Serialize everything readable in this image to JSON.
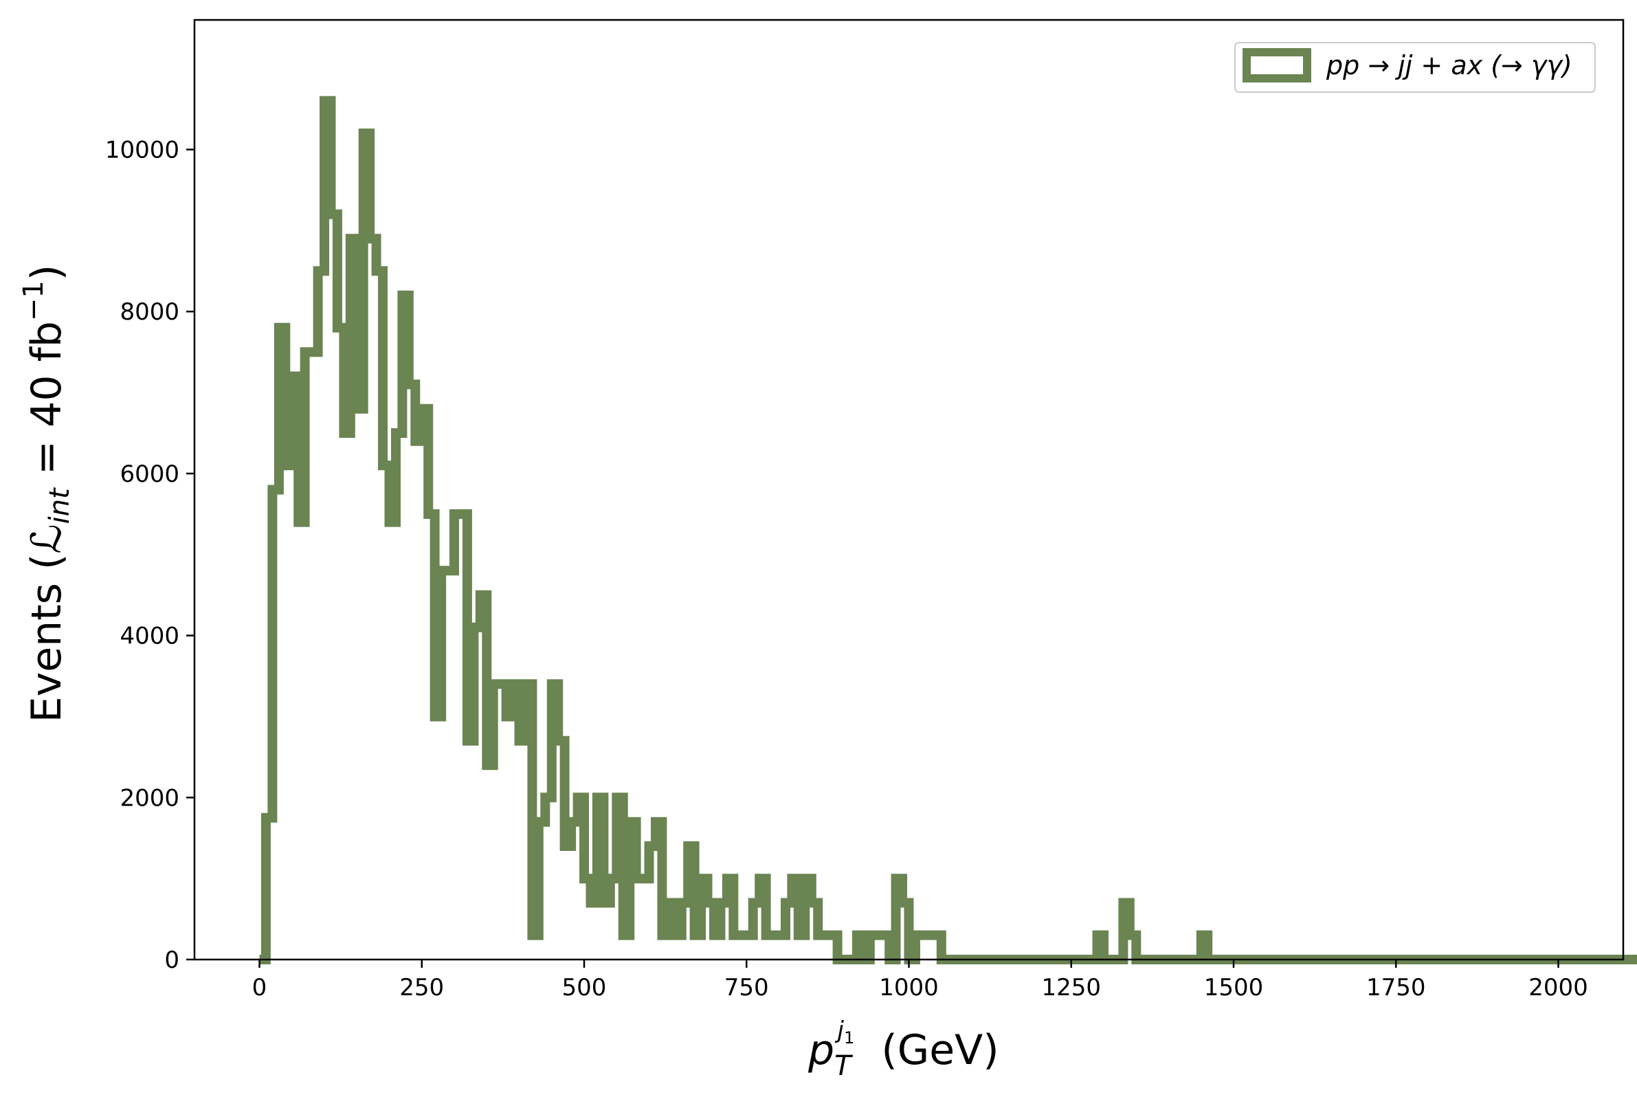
{
  "chart_data": {
    "type": "step",
    "title": "",
    "xlabel": "p_T^{j_1} (GeV)",
    "ylabel": "Events (ℒ_int = 40 fb⁻¹)",
    "xlim": [
      -100,
      2100
    ],
    "ylim": [
      0,
      11600
    ],
    "xticks": [
      0,
      250,
      500,
      750,
      1000,
      1250,
      1500,
      1750,
      2000
    ],
    "yticks": [
      0,
      2000,
      4000,
      6000,
      8000,
      10000
    ],
    "grid": false,
    "legend_position": "upper right",
    "color": "#6a8452",
    "series": [
      {
        "name": "pp → jj + ax (→ γγ)",
        "bin_width": 10,
        "bin_start": 0,
        "values": [
          0,
          1750,
          5800,
          7800,
          6100,
          7200,
          5400,
          7500,
          7500,
          8500,
          10600,
          9200,
          7800,
          6500,
          8900,
          6800,
          10200,
          8900,
          8500,
          6100,
          5400,
          6500,
          8200,
          7100,
          6400,
          6800,
          5500,
          3000,
          4800,
          4800,
          5500,
          5500,
          2700,
          4100,
          4500,
          2400,
          3400,
          3400,
          3000,
          3400,
          2700,
          3400,
          300,
          1700,
          2000,
          3400,
          2700,
          1400,
          1700,
          2000,
          1000,
          700,
          2000,
          700,
          1000,
          2000,
          300,
          1700,
          1000,
          1000,
          1400,
          1700,
          300,
          700,
          300,
          700,
          1400,
          300,
          1000,
          700,
          300,
          700,
          1000,
          300,
          300,
          300,
          700,
          1000,
          300,
          300,
          300,
          700,
          1000,
          300,
          1000,
          700,
          300,
          300,
          300,
          0,
          0,
          0,
          300,
          0,
          300,
          300,
          300,
          0,
          1000,
          700,
          0,
          300,
          300,
          300,
          300,
          0,
          0,
          0,
          0,
          0,
          0,
          0,
          0,
          0,
          0,
          0,
          0,
          0,
          0,
          0,
          0,
          0,
          0,
          0,
          0,
          0,
          0,
          0,
          0,
          300,
          0,
          0,
          0,
          700,
          300,
          0,
          0,
          0,
          0,
          0,
          0,
          0,
          0,
          0,
          0,
          300,
          0,
          0,
          0,
          0,
          0,
          0,
          0,
          0,
          0,
          0,
          0,
          0,
          0,
          0,
          0,
          0,
          0,
          0,
          0,
          0,
          0,
          0,
          0,
          0,
          0,
          0,
          0,
          0,
          0,
          0,
          0,
          0,
          0,
          0,
          0,
          0,
          0,
          0,
          0,
          0,
          0,
          0,
          0,
          0,
          0,
          0,
          0,
          0,
          0,
          0,
          0,
          0,
          0,
          0,
          0,
          0,
          0,
          0,
          0,
          0,
          0,
          0,
          0,
          0,
          0,
          0,
          0,
          0,
          0,
          0,
          0,
          0,
          0,
          0,
          0,
          0,
          0,
          0,
          0
        ]
      }
    ]
  },
  "legend": {
    "label": "pp → jj + ax (→ γγ)"
  }
}
